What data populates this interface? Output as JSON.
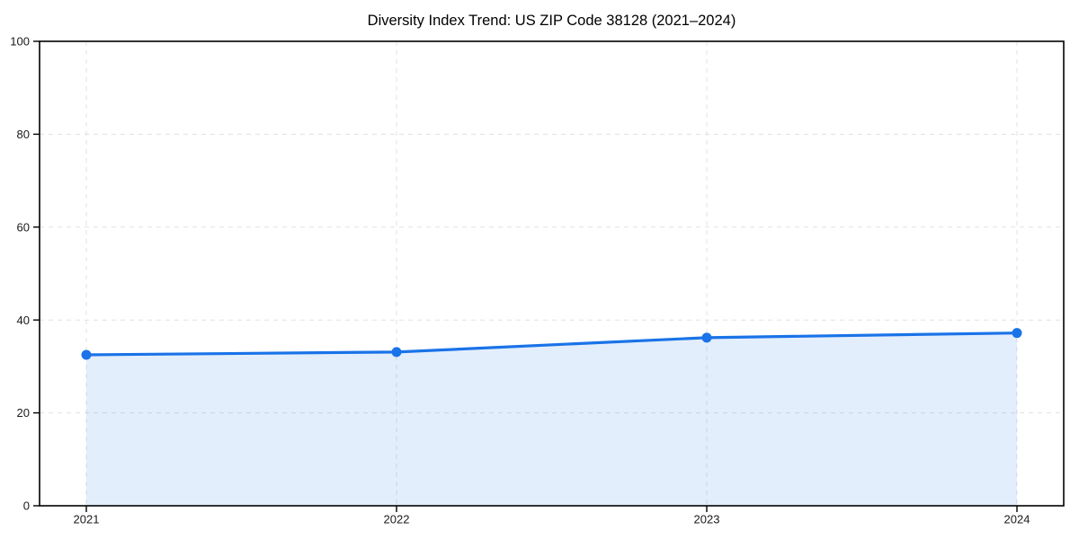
{
  "page": {
    "background": "#ffffff"
  },
  "chart_data": {
    "type": "area",
    "title": "Diversity Index Trend: US ZIP Code 38128 (2021–2024)",
    "categories": [
      "2021",
      "2022",
      "2023",
      "2024"
    ],
    "series": [
      {
        "name": "Diversity Index",
        "values": [
          32.5,
          33.1,
          36.2,
          37.2
        ]
      }
    ],
    "xlabel": "",
    "ylabel": "",
    "ylim": [
      0,
      100
    ],
    "yticks": [
      0,
      20,
      40,
      60,
      80,
      100
    ],
    "grid": {
      "visible": true,
      "style": "dashed",
      "color": "#e1e1e1"
    },
    "legend": {
      "visible": false
    },
    "marker": {
      "shape": "circle",
      "radius": 5.5
    },
    "colors": {
      "line": "#1a73e8",
      "marker": "#1a73e8",
      "area_fill": "#1a73e8",
      "area_fill_opacity": 0.12,
      "spine": "#000000",
      "tick_text": "#1a1a1a",
      "background": "#ffffff"
    }
  }
}
